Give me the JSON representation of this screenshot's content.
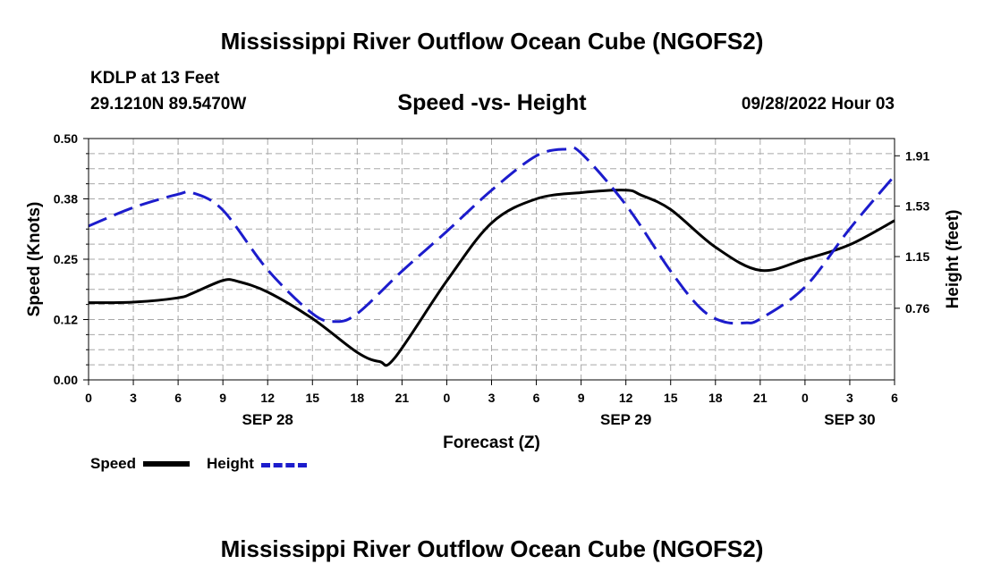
{
  "header": {
    "title": "Mississippi River Outflow Ocean Cube (NGOFS2)",
    "station": "KDLP at 13 Feet",
    "coords": "29.1210N  89.5470W",
    "subtitle": "Speed -vs- Height",
    "datetime": "09/28/2022 Hour 03"
  },
  "footer": {
    "title": "Mississippi River Outflow Ocean Cube (NGOFS2)"
  },
  "legend": {
    "speed_label": "Speed",
    "height_label": "Height"
  },
  "chart_data": {
    "type": "line",
    "title": "Speed -vs- Height",
    "xlabel": "Forecast (Z)",
    "ylabel": "Speed (Knots)",
    "y2label": "Height (feet)",
    "xlim": [
      0,
      54
    ],
    "ylim": [
      0,
      0.5
    ],
    "y2lim": [
      0.22,
      2.04
    ],
    "x_tick_labels": [
      "0",
      "3",
      "6",
      "9",
      "12",
      "15",
      "18",
      "21",
      "0",
      "3",
      "6",
      "9",
      "12",
      "15",
      "18",
      "21",
      "0",
      "3",
      "6"
    ],
    "date_labels": [
      {
        "x": 12,
        "text": "SEP 28"
      },
      {
        "x": 36,
        "text": "SEP 29"
      },
      {
        "x": 51,
        "text": "SEP 30"
      }
    ],
    "y_ticks": [
      0,
      0.125,
      0.25,
      0.375,
      0.5
    ],
    "y_tick_labels": [
      "0.00",
      "0.12",
      "0.25",
      "0.38",
      "0.50"
    ],
    "y2_ticks": [
      0.76,
      1.15,
      1.53,
      1.91
    ],
    "y2_tick_labels": [
      "0.76",
      "1.15",
      "1.53",
      "1.91"
    ],
    "grid": true,
    "series": [
      {
        "name": "Speed",
        "axis": "left",
        "color": "#000000",
        "x": [
          0,
          3,
          6,
          7,
          9,
          10,
          12,
          15,
          18,
          19.5,
          20.5,
          24,
          27,
          30,
          33,
          36,
          37,
          39,
          42,
          45,
          48,
          51,
          54
        ],
        "values": [
          0.16,
          0.161,
          0.17,
          0.18,
          0.206,
          0.204,
          0.182,
          0.127,
          0.057,
          0.038,
          0.045,
          0.205,
          0.325,
          0.375,
          0.388,
          0.393,
          0.383,
          0.353,
          0.275,
          0.227,
          0.25,
          0.28,
          0.33
        ]
      },
      {
        "name": "Height",
        "axis": "right",
        "color": "#1c1ccc",
        "x": [
          0,
          3,
          6,
          7,
          9,
          12,
          15,
          16.5,
          18,
          21,
          24,
          27,
          30,
          32,
          33,
          36,
          39,
          41,
          42.5,
          44,
          45,
          48,
          51,
          54
        ],
        "values": [
          1.38,
          1.52,
          1.62,
          1.63,
          1.5,
          1.05,
          0.72,
          0.66,
          0.72,
          1.04,
          1.34,
          1.65,
          1.91,
          1.96,
          1.93,
          1.54,
          1.04,
          0.76,
          0.66,
          0.65,
          0.68,
          0.92,
          1.36,
          1.76
        ]
      }
    ]
  }
}
